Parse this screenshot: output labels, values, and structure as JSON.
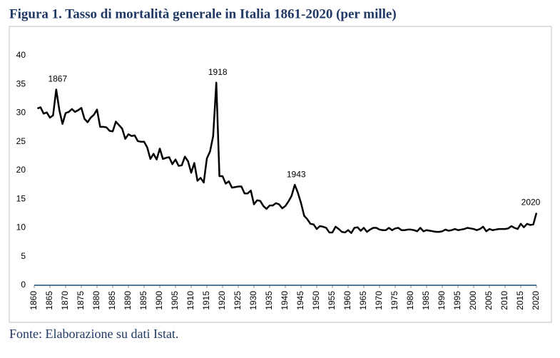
{
  "chart_data": {
    "type": "line",
    "title": "Figura 1. Tasso di mortalità generale in Italia 1861-2020 (per mille)",
    "source": "Fonte: Elaborazione su dati Istat.",
    "x": [
      1861,
      1862,
      1863,
      1864,
      1865,
      1866,
      1867,
      1868,
      1869,
      1870,
      1871,
      1872,
      1873,
      1874,
      1875,
      1876,
      1877,
      1878,
      1879,
      1880,
      1881,
      1882,
      1883,
      1884,
      1885,
      1886,
      1887,
      1888,
      1889,
      1890,
      1891,
      1892,
      1893,
      1894,
      1895,
      1896,
      1897,
      1898,
      1899,
      1900,
      1901,
      1902,
      1903,
      1904,
      1905,
      1906,
      1907,
      1908,
      1909,
      1910,
      1911,
      1912,
      1913,
      1914,
      1915,
      1916,
      1917,
      1918,
      1919,
      1920,
      1921,
      1922,
      1923,
      1924,
      1925,
      1926,
      1927,
      1928,
      1929,
      1930,
      1931,
      1932,
      1933,
      1934,
      1935,
      1936,
      1937,
      1938,
      1939,
      1940,
      1941,
      1942,
      1943,
      1944,
      1945,
      1946,
      1947,
      1948,
      1949,
      1950,
      1951,
      1952,
      1953,
      1954,
      1955,
      1956,
      1957,
      1958,
      1959,
      1960,
      1961,
      1962,
      1963,
      1964,
      1965,
      1966,
      1967,
      1968,
      1969,
      1970,
      1971,
      1972,
      1973,
      1974,
      1975,
      1976,
      1977,
      1978,
      1979,
      1980,
      1981,
      1982,
      1983,
      1984,
      1985,
      1986,
      1987,
      1988,
      1989,
      1990,
      1991,
      1992,
      1993,
      1994,
      1995,
      1996,
      1997,
      1998,
      1999,
      2000,
      2001,
      2002,
      2003,
      2004,
      2005,
      2006,
      2007,
      2008,
      2009,
      2010,
      2011,
      2012,
      2013,
      2014,
      2015,
      2016,
      2017,
      2018,
      2019,
      2020
    ],
    "series": [
      {
        "name": "Tasso di mortalità",
        "color": "#000000",
        "values": [
          30.8,
          31.0,
          29.9,
          30.1,
          29.2,
          29.6,
          34.1,
          30.5,
          28.1,
          30.0,
          30.2,
          30.7,
          30.2,
          30.5,
          30.9,
          29.0,
          28.4,
          29.2,
          29.7,
          30.6,
          27.6,
          27.6,
          27.5,
          26.9,
          26.8,
          28.5,
          27.9,
          27.3,
          25.5,
          26.3,
          26.0,
          26.1,
          25.1,
          25.0,
          25.0,
          24.0,
          22.0,
          22.9,
          21.9,
          23.8,
          22.0,
          22.2,
          22.3,
          21.1,
          21.9,
          20.8,
          20.9,
          22.4,
          21.6,
          19.6,
          21.3,
          18.2,
          18.7,
          17.9,
          22.1,
          23.3,
          26.0,
          35.3,
          19.0,
          19.0,
          17.7,
          18.1,
          17.0,
          17.1,
          17.2,
          17.2,
          16.0,
          16.0,
          16.5,
          14.1,
          14.8,
          14.7,
          13.8,
          13.3,
          13.9,
          13.9,
          14.3,
          14.1,
          13.4,
          13.8,
          14.6,
          15.6,
          17.5,
          16.1,
          14.3,
          12.1,
          11.5,
          10.7,
          10.6,
          9.8,
          10.3,
          10.2,
          10.0,
          9.2,
          9.2,
          10.2,
          9.8,
          9.3,
          9.2,
          9.6,
          9.1,
          10.0,
          10.1,
          9.5,
          10.0,
          9.3,
          9.7,
          10.0,
          10.0,
          9.7,
          9.6,
          9.6,
          10.0,
          9.6,
          9.9,
          10.0,
          9.6,
          9.6,
          9.7,
          9.7,
          9.6,
          9.4,
          10.0,
          9.4,
          9.6,
          9.5,
          9.4,
          9.3,
          9.3,
          9.4,
          9.7,
          9.5,
          9.6,
          9.8,
          9.6,
          9.7,
          9.8,
          10.0,
          9.9,
          9.8,
          9.6,
          9.8,
          10.2,
          9.4,
          9.8,
          9.6,
          9.7,
          9.8,
          9.8,
          9.8,
          9.9,
          10.3,
          10.0,
          9.8,
          10.7,
          10.1,
          10.7,
          10.5,
          10.6,
          12.6
        ]
      }
    ],
    "annotations": [
      {
        "text": "1867",
        "x": 1867
      },
      {
        "text": "1918",
        "x": 1918
      },
      {
        "text": "1943",
        "x": 1943
      },
      {
        "text": "2020",
        "x": 2020
      }
    ],
    "xlim": [
      1860,
      2020
    ],
    "xticks": [
      1860,
      1865,
      1870,
      1875,
      1880,
      1885,
      1890,
      1895,
      1900,
      1905,
      1910,
      1915,
      1920,
      1925,
      1930,
      1935,
      1940,
      1945,
      1950,
      1955,
      1960,
      1965,
      1970,
      1975,
      1980,
      1985,
      1990,
      1995,
      2000,
      2005,
      2010,
      2015,
      2020
    ],
    "ylim": [
      0,
      40
    ],
    "yticks": [
      0,
      5,
      10,
      15,
      20,
      25,
      30,
      35,
      40
    ],
    "baseline_color": "#1f4e79"
  }
}
